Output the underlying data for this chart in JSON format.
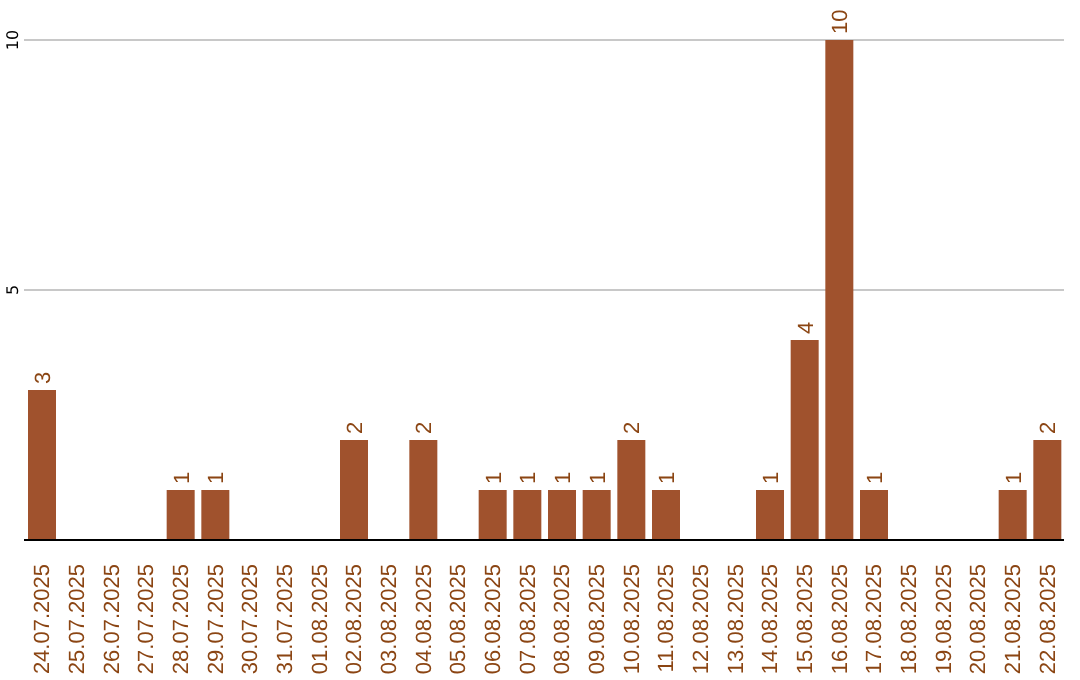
{
  "chart_data": {
    "type": "bar",
    "categories": [
      "24.07.2025",
      "25.07.2025",
      "26.07.2025",
      "27.07.2025",
      "28.07.2025",
      "29.07.2025",
      "30.07.2025",
      "31.07.2025",
      "01.08.2025",
      "02.08.2025",
      "03.08.2025",
      "04.08.2025",
      "05.08.2025",
      "06.08.2025",
      "07.08.2025",
      "08.08.2025",
      "09.08.2025",
      "10.08.2025",
      "11.08.2025",
      "12.08.2025",
      "13.08.2025",
      "14.08.2025",
      "15.08.2025",
      "16.08.2025",
      "17.08.2025",
      "18.08.2025",
      "19.08.2025",
      "20.08.2025",
      "21.08.2025",
      "22.08.2025"
    ],
    "values": [
      3,
      0,
      0,
      0,
      1,
      1,
      0,
      0,
      0,
      2,
      0,
      2,
      0,
      1,
      1,
      1,
      1,
      2,
      1,
      0,
      0,
      1,
      4,
      10,
      1,
      0,
      0,
      0,
      1,
      2
    ],
    "value_labels": [
      "3",
      null,
      null,
      null,
      "1",
      "1",
      null,
      null,
      null,
      "2",
      null,
      "2",
      null,
      "1",
      "1",
      "1",
      "1",
      "2",
      "1",
      null,
      null,
      "1",
      "4",
      "10",
      "1",
      null,
      null,
      null,
      "1",
      "2"
    ],
    "color": "#a0522d",
    "ylim": [
      0,
      10
    ],
    "yticks": [
      5,
      10
    ],
    "grid": "y"
  }
}
